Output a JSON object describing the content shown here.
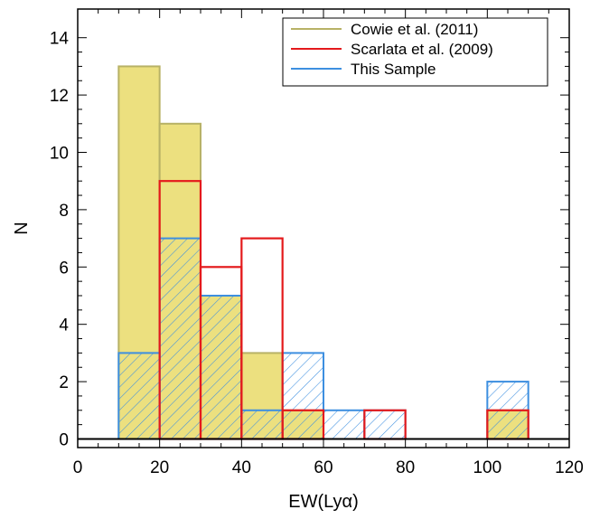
{
  "chart_data": {
    "type": "bar",
    "xlabel": "EW(Lyα)",
    "ylabel": "N",
    "xlim": [
      0,
      120
    ],
    "ylim": [
      -0.3,
      15
    ],
    "bin_width": 10,
    "xticks": [
      0,
      20,
      40,
      60,
      80,
      100,
      120
    ],
    "yticks": [
      0,
      2,
      4,
      6,
      8,
      10,
      12,
      14
    ],
    "grid": false,
    "legend": "top-right",
    "series": [
      {
        "name": "Cowie et al. (2011)",
        "style": "filled",
        "color": "#b8b266",
        "fill": "#ece07f",
        "bins": [
          {
            "x": 10,
            "y": 13
          },
          {
            "x": 20,
            "y": 11
          },
          {
            "x": 30,
            "y": 5
          },
          {
            "x": 40,
            "y": 3
          },
          {
            "x": 50,
            "y": 1
          },
          {
            "x": 100,
            "y": 1
          }
        ]
      },
      {
        "name": "Scarlata et al. (2009)",
        "style": "outline",
        "color": "#e41a1c",
        "bins": [
          {
            "x": 20,
            "y": 9
          },
          {
            "x": 30,
            "y": 6
          },
          {
            "x": 40,
            "y": 7
          },
          {
            "x": 50,
            "y": 1
          },
          {
            "x": 70,
            "y": 1
          },
          {
            "x": 100,
            "y": 1
          }
        ]
      },
      {
        "name": "This Sample",
        "style": "hatched",
        "color": "#3d8fe0",
        "bins": [
          {
            "x": 10,
            "y": 3
          },
          {
            "x": 20,
            "y": 7
          },
          {
            "x": 30,
            "y": 5
          },
          {
            "x": 40,
            "y": 1
          },
          {
            "x": 50,
            "y": 3
          },
          {
            "x": 60,
            "y": 1
          },
          {
            "x": 70,
            "y": 1
          },
          {
            "x": 100,
            "y": 2
          }
        ]
      }
    ]
  }
}
